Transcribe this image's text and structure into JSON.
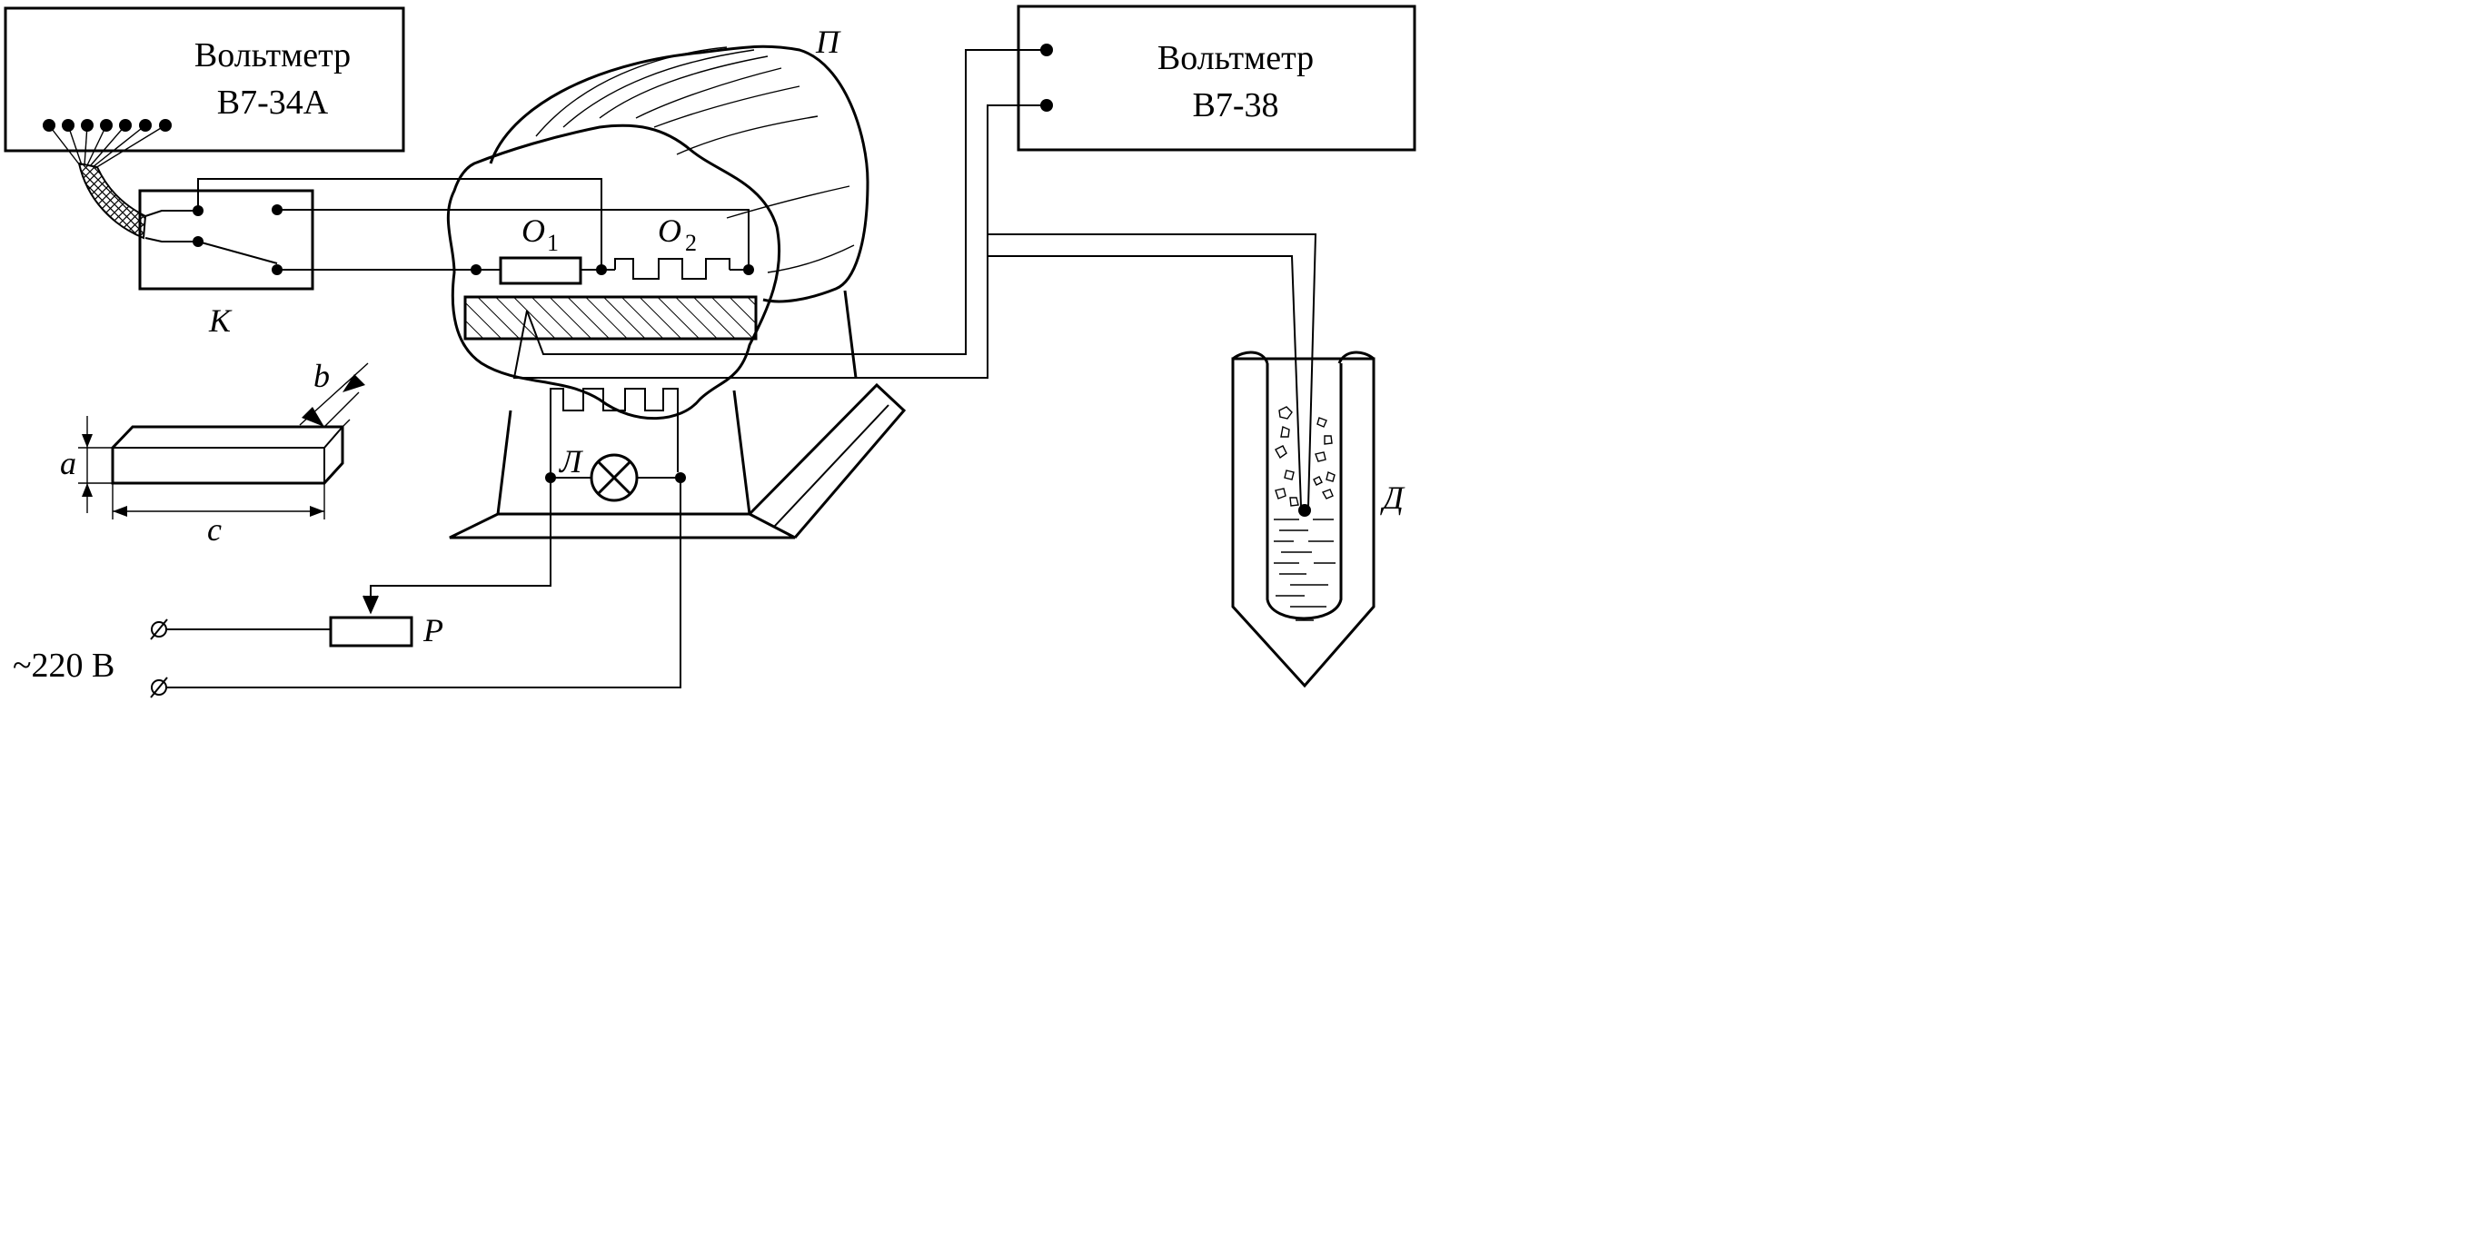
{
  "voltmeter_left": {
    "title": "Вольтметр",
    "model": "В7-34А"
  },
  "voltmeter_right": {
    "title": "Вольтметр",
    "model": "В7-38"
  },
  "labels": {
    "switch": "К",
    "furnace": "П",
    "dewar": "Д",
    "lamp": "Л",
    "rheostat": "Р",
    "sample_o1": "О",
    "sample_o1_sub": "1",
    "sample_o2": "О",
    "sample_o2_sub": "2",
    "mains": "~220 В",
    "dim_a": "a",
    "dim_b": "b",
    "dim_c": "c"
  }
}
